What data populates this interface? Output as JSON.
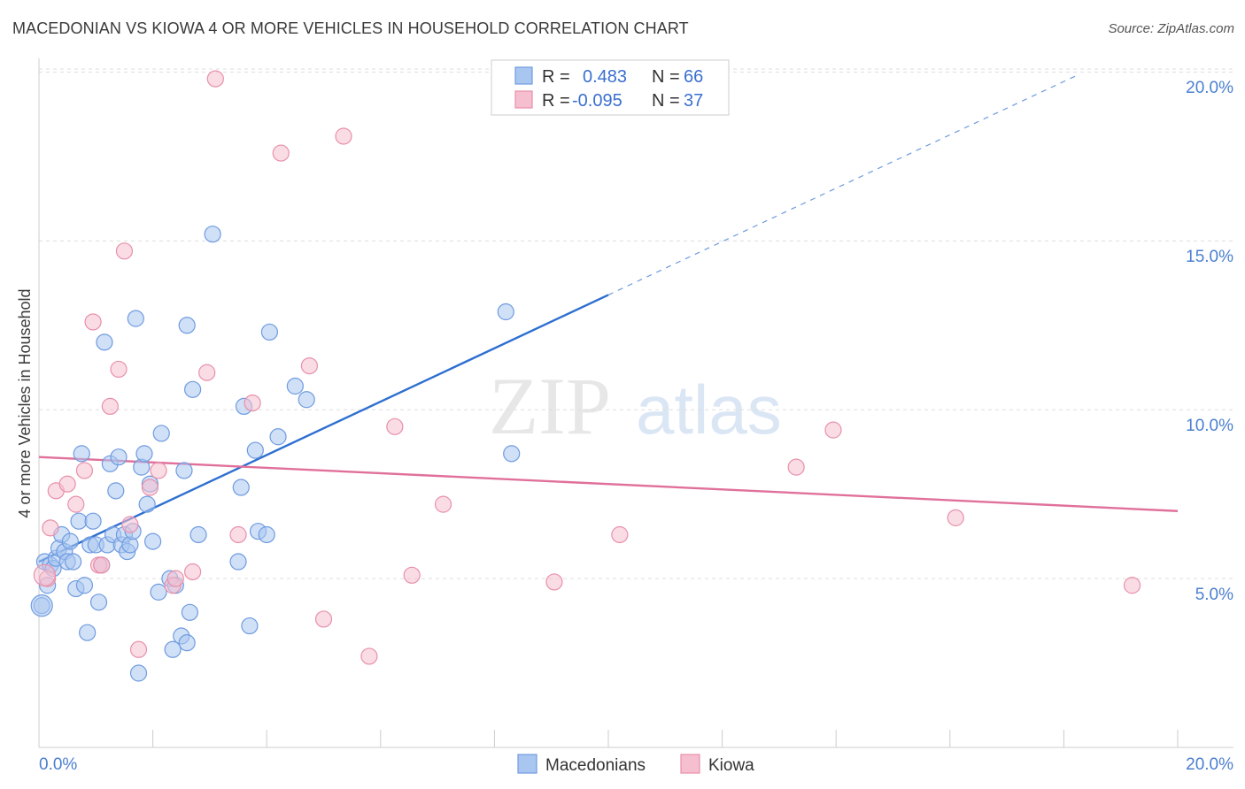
{
  "title": "MACEDONIAN VS KIOWA 4 OR MORE VEHICLES IN HOUSEHOLD CORRELATION CHART",
  "source": "Source: ZipAtlas.com",
  "watermark": {
    "zip": "ZIP",
    "atlas": "atlas"
  },
  "colors": {
    "blue_fill": "#a9c6f0",
    "blue_stroke": "#6f9be0",
    "blue_line": "#2d6fd0",
    "pink_fill": "#f6bfd0",
    "pink_stroke": "#e890ab",
    "pink_line": "#e0709a",
    "grid": "#dddddd",
    "tick_text": "#4a7fd0"
  },
  "legend": {
    "r_label": "R =",
    "n_label": "N =",
    "rows": [
      {
        "r": "0.483",
        "n": "66"
      },
      {
        "r": "-0.095",
        "n": "37"
      }
    ]
  },
  "chart_data": {
    "type": "scatter",
    "xlabel": "",
    "ylabel": "4 or more Vehicles in Household",
    "xlim": [
      0,
      20
    ],
    "ylim": [
      0,
      20.3
    ],
    "x_tick_labels": [
      "0.0%",
      "20.0%"
    ],
    "y_tick_labels": [
      "5.0%",
      "10.0%",
      "15.0%",
      "20.0%"
    ],
    "y_ticks": [
      5,
      10,
      15,
      20
    ],
    "series": [
      {
        "name": "Macedonians",
        "color": "blue",
        "trend": {
          "x0": 0,
          "y0": 5.5,
          "x1": 10,
          "y1": 13.4,
          "dash_to_x": 18.2
        },
        "points": [
          [
            0.1,
            5.5
          ],
          [
            0.15,
            4.8
          ],
          [
            0.2,
            5.4
          ],
          [
            0.25,
            5.3
          ],
          [
            0.3,
            5.6
          ],
          [
            0.35,
            5.9
          ],
          [
            0.4,
            6.3
          ],
          [
            0.45,
            5.8
          ],
          [
            0.5,
            5.5
          ],
          [
            0.55,
            6.1
          ],
          [
            0.6,
            5.5
          ],
          [
            0.65,
            4.7
          ],
          [
            0.7,
            6.7
          ],
          [
            0.75,
            8.7
          ],
          [
            0.8,
            4.8
          ],
          [
            0.85,
            3.4
          ],
          [
            0.9,
            6.0
          ],
          [
            0.95,
            6.7
          ],
          [
            1.0,
            6.0
          ],
          [
            1.05,
            4.3
          ],
          [
            1.1,
            5.4
          ],
          [
            1.15,
            12.0
          ],
          [
            1.2,
            6.0
          ],
          [
            1.25,
            8.4
          ],
          [
            1.3,
            6.3
          ],
          [
            1.35,
            7.6
          ],
          [
            1.4,
            8.6
          ],
          [
            1.45,
            6.0
          ],
          [
            1.5,
            6.3
          ],
          [
            1.55,
            5.8
          ],
          [
            1.6,
            6.0
          ],
          [
            1.65,
            6.4
          ],
          [
            1.7,
            12.7
          ],
          [
            1.75,
            2.2
          ],
          [
            1.8,
            8.3
          ],
          [
            1.85,
            8.7
          ],
          [
            1.9,
            7.2
          ],
          [
            1.95,
            7.8
          ],
          [
            2.0,
            6.1
          ],
          [
            2.1,
            4.6
          ],
          [
            2.15,
            9.3
          ],
          [
            2.3,
            5.0
          ],
          [
            2.35,
            2.9
          ],
          [
            2.4,
            4.8
          ],
          [
            2.5,
            3.3
          ],
          [
            2.55,
            8.2
          ],
          [
            2.6,
            3.1
          ],
          [
            2.6,
            12.5
          ],
          [
            2.65,
            4.0
          ],
          [
            2.7,
            10.6
          ],
          [
            2.8,
            6.3
          ],
          [
            3.05,
            15.2
          ],
          [
            3.5,
            5.5
          ],
          [
            3.55,
            7.7
          ],
          [
            3.6,
            10.1
          ],
          [
            3.7,
            3.6
          ],
          [
            3.8,
            8.8
          ],
          [
            3.85,
            6.4
          ],
          [
            4.0,
            6.3
          ],
          [
            4.05,
            12.3
          ],
          [
            4.2,
            9.2
          ],
          [
            4.5,
            10.7
          ],
          [
            4.7,
            10.3
          ],
          [
            8.2,
            12.9
          ],
          [
            8.3,
            8.7
          ],
          [
            0.05,
            4.2
          ]
        ]
      },
      {
        "name": "Kiowa",
        "color": "pink",
        "trend": {
          "x0": 0,
          "y0": 8.6,
          "x1": 20,
          "y1": 7.0
        },
        "points": [
          [
            0.15,
            5.0
          ],
          [
            0.2,
            6.5
          ],
          [
            0.3,
            7.6
          ],
          [
            0.5,
            7.8
          ],
          [
            0.65,
            7.2
          ],
          [
            0.8,
            8.2
          ],
          [
            0.95,
            12.6
          ],
          [
            1.05,
            5.4
          ],
          [
            1.1,
            5.4
          ],
          [
            1.25,
            10.1
          ],
          [
            1.4,
            11.2
          ],
          [
            1.5,
            14.7
          ],
          [
            1.6,
            6.6
          ],
          [
            1.75,
            2.9
          ],
          [
            1.95,
            7.7
          ],
          [
            2.1,
            8.2
          ],
          [
            2.35,
            4.8
          ],
          [
            2.4,
            5.0
          ],
          [
            2.7,
            5.2
          ],
          [
            2.95,
            11.1
          ],
          [
            3.1,
            19.8
          ],
          [
            3.5,
            6.3
          ],
          [
            3.75,
            10.2
          ],
          [
            4.25,
            17.6
          ],
          [
            4.75,
            11.3
          ],
          [
            5.0,
            3.8
          ],
          [
            5.35,
            18.1
          ],
          [
            5.8,
            2.7
          ],
          [
            6.25,
            9.5
          ],
          [
            6.55,
            5.1
          ],
          [
            7.1,
            7.2
          ],
          [
            9.05,
            4.9
          ],
          [
            10.2,
            6.3
          ],
          [
            13.3,
            8.3
          ],
          [
            13.95,
            9.4
          ],
          [
            16.1,
            6.8
          ],
          [
            19.2,
            4.8
          ]
        ]
      }
    ]
  },
  "bottom_legend": [
    "Macedonians",
    "Kiowa"
  ]
}
